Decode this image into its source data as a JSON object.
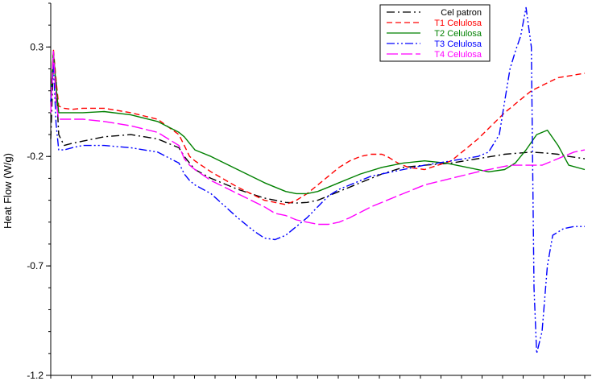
{
  "chart_data": {
    "type": "line",
    "title": "",
    "xlabel": "",
    "ylabel": "Heat Flow (W/g)",
    "xlim": [
      0,
      100
    ],
    "ylim": [
      -1.2,
      0.5
    ],
    "y_ticks": [
      -1.2,
      -0.7,
      -0.2,
      0.3
    ],
    "y_tick_labels": [
      "-1.2",
      "-0.7",
      "-0.2",
      "0.3"
    ],
    "x_minor_ticks": 26,
    "grid": false,
    "legend_position": "top-right",
    "series": [
      {
        "name": "Cel patron",
        "color": "#000000",
        "dash": "10,4,2,4",
        "x": [
          0,
          0.5,
          1.0,
          1.5,
          2.5,
          4,
          6,
          10,
          15,
          20,
          24,
          25,
          26,
          27,
          30,
          35,
          40,
          42,
          44,
          46,
          48,
          50,
          52,
          54,
          56,
          58,
          62,
          66,
          70,
          75,
          80,
          85,
          90,
          93,
          95,
          97,
          100
        ],
        "y": [
          -0.12,
          0.23,
          0.15,
          -0.1,
          -0.15,
          -0.14,
          -0.13,
          -0.11,
          -0.1,
          -0.12,
          -0.16,
          -0.2,
          -0.23,
          -0.26,
          -0.3,
          -0.35,
          -0.39,
          -0.4,
          -0.41,
          -0.413,
          -0.41,
          -0.4,
          -0.38,
          -0.36,
          -0.34,
          -0.32,
          -0.28,
          -0.25,
          -0.24,
          -0.23,
          -0.21,
          -0.19,
          -0.18,
          -0.185,
          -0.19,
          -0.2,
          -0.21
        ]
      },
      {
        "name": "T1 Celulosa",
        "color": "#ff0000",
        "dash": "7,4",
        "x": [
          0,
          0.5,
          1.0,
          1.5,
          2.5,
          4,
          6,
          10,
          15,
          20,
          24,
          25,
          26,
          27,
          30,
          35,
          40,
          42,
          44,
          46,
          48,
          50,
          52,
          54,
          56,
          58,
          60,
          62,
          63,
          65,
          67,
          70,
          75,
          80,
          85,
          90,
          95,
          100
        ],
        "y": [
          0.05,
          0.29,
          0.15,
          0.03,
          0.02,
          0.015,
          0.02,
          0.02,
          0.0,
          -0.03,
          -0.1,
          -0.15,
          -0.2,
          -0.22,
          -0.27,
          -0.34,
          -0.4,
          -0.41,
          -0.42,
          -0.4,
          -0.37,
          -0.33,
          -0.29,
          -0.25,
          -0.22,
          -0.2,
          -0.19,
          -0.19,
          -0.2,
          -0.23,
          -0.25,
          -0.26,
          -0.22,
          -0.12,
          0.0,
          0.1,
          0.16,
          0.18
        ]
      },
      {
        "name": "T2 Celulosa",
        "color": "#008000",
        "dash": "",
        "x": [
          0,
          0.5,
          1.0,
          1.5,
          2.5,
          4,
          6,
          10,
          15,
          20,
          24,
          25,
          26,
          27,
          30,
          35,
          40,
          42,
          44,
          46,
          48,
          50,
          52,
          54,
          56,
          58,
          62,
          66,
          70,
          74,
          78,
          82,
          85,
          87,
          89,
          91,
          93,
          95,
          97,
          100
        ],
        "y": [
          0.05,
          0.28,
          0.12,
          0.0,
          0.0,
          0.0,
          0.0,
          0.005,
          -0.01,
          -0.04,
          -0.09,
          -0.11,
          -0.14,
          -0.17,
          -0.2,
          -0.26,
          -0.32,
          -0.34,
          -0.36,
          -0.37,
          -0.37,
          -0.36,
          -0.34,
          -0.32,
          -0.3,
          -0.28,
          -0.25,
          -0.23,
          -0.22,
          -0.23,
          -0.25,
          -0.27,
          -0.26,
          -0.23,
          -0.17,
          -0.1,
          -0.08,
          -0.15,
          -0.24,
          -0.26
        ]
      },
      {
        "name": "T3 Celulosa",
        "color": "#0000ff",
        "dash": "10,3,2,3,2,3",
        "x": [
          0,
          0.5,
          1.0,
          1.5,
          2.5,
          4,
          6,
          10,
          15,
          20,
          24,
          25,
          26,
          27,
          30,
          35,
          38,
          40,
          42,
          44,
          46,
          48,
          50,
          52,
          54,
          56,
          60,
          66,
          70,
          75,
          80,
          82,
          84,
          85,
          86,
          87,
          88,
          89,
          90,
          90.5,
          91,
          92,
          93,
          94,
          96,
          98,
          100
        ],
        "y": [
          0.05,
          0.22,
          -0.05,
          -0.17,
          -0.17,
          -0.16,
          -0.15,
          -0.15,
          -0.16,
          -0.18,
          -0.23,
          -0.28,
          -0.31,
          -0.33,
          -0.37,
          -0.48,
          -0.54,
          -0.573,
          -0.58,
          -0.56,
          -0.52,
          -0.48,
          -0.43,
          -0.38,
          -0.35,
          -0.33,
          -0.29,
          -0.26,
          -0.24,
          -0.22,
          -0.2,
          -0.18,
          -0.1,
          0.05,
          0.2,
          0.28,
          0.35,
          0.48,
          0.3,
          -0.8,
          -1.1,
          -1.0,
          -0.7,
          -0.56,
          -0.53,
          -0.52,
          -0.52
        ]
      },
      {
        "name": "T4 Celulosa",
        "color": "#ff00ff",
        "dash": "14,4",
        "x": [
          0,
          0.5,
          1.0,
          1.5,
          2.5,
          4,
          6,
          10,
          15,
          20,
          24,
          25,
          26,
          27,
          30,
          35,
          40,
          42,
          44,
          46,
          48,
          50,
          52,
          54,
          56,
          60,
          66,
          70,
          75,
          80,
          84,
          86,
          88,
          90,
          92,
          94,
          96,
          98,
          100
        ],
        "y": [
          0.0,
          0.28,
          0.05,
          -0.03,
          -0.03,
          -0.03,
          -0.03,
          -0.04,
          -0.06,
          -0.09,
          -0.15,
          -0.21,
          -0.24,
          -0.26,
          -0.31,
          -0.37,
          -0.43,
          -0.46,
          -0.47,
          -0.49,
          -0.5,
          -0.51,
          -0.51,
          -0.5,
          -0.48,
          -0.43,
          -0.37,
          -0.33,
          -0.3,
          -0.27,
          -0.25,
          -0.24,
          -0.24,
          -0.24,
          -0.24,
          -0.22,
          -0.2,
          -0.18,
          -0.17
        ]
      }
    ]
  }
}
